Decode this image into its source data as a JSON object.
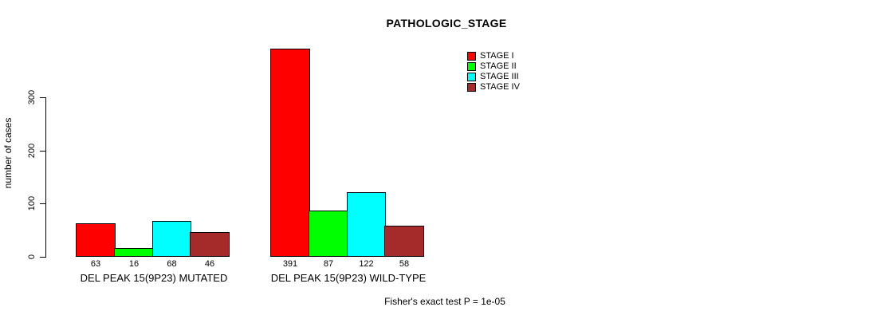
{
  "chart_data": {
    "type": "bar",
    "title": "PATHOLOGIC_STAGE",
    "ylabel": "number of cases",
    "xlabel": "",
    "ylim": [
      0,
      400
    ],
    "yticks": [
      0,
      100,
      200,
      300
    ],
    "categories": [
      "DEL PEAK 15(9P23) MUTATED",
      "DEL PEAK 15(9P23) WILD-TYPE"
    ],
    "series": [
      {
        "name": "STAGE I",
        "color": "#ff0000",
        "values": [
          63,
          391
        ]
      },
      {
        "name": "STAGE II",
        "color": "#00ff00",
        "values": [
          16,
          87
        ]
      },
      {
        "name": "STAGE III",
        "color": "#00ffff",
        "values": [
          68,
          122
        ]
      },
      {
        "name": "STAGE IV",
        "color": "#a52a2a",
        "values": [
          46,
          58
        ]
      }
    ],
    "bar_value_labels_shown": true,
    "legend_position": "top-right",
    "grid": false,
    "annotation": "Fisher's exact test P = 1e-05"
  }
}
